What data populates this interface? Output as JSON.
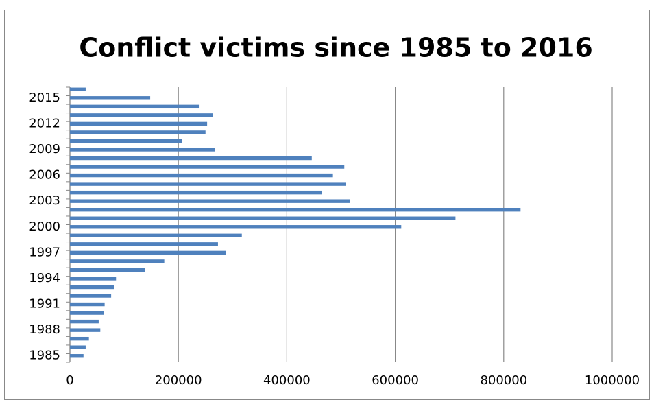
{
  "chart_data": {
    "type": "barh",
    "title": "Conflict victims since 1985 to 2016",
    "categories": [
      "1985",
      null,
      null,
      "1988",
      null,
      null,
      "1991",
      null,
      null,
      "1994",
      null,
      null,
      "1997",
      null,
      null,
      "2000",
      null,
      null,
      "2003",
      null,
      null,
      "2006",
      null,
      null,
      "2009",
      null,
      null,
      "2012",
      null,
      null,
      "2015",
      null
    ],
    "values": [
      25000,
      29000,
      35000,
      56000,
      53000,
      63000,
      64000,
      76000,
      81000,
      85000,
      138000,
      174000,
      288000,
      273000,
      317000,
      611000,
      711000,
      831000,
      517000,
      464000,
      509000,
      485000,
      506000,
      446000,
      267000,
      207000,
      250000,
      253000,
      264000,
      239000,
      148000,
      29000
    ],
    "color": "#4f81bd",
    "xlim": [
      0,
      1000000
    ],
    "xticks": [
      0,
      200000,
      400000,
      600000,
      800000,
      1000000
    ],
    "grid": true
  }
}
